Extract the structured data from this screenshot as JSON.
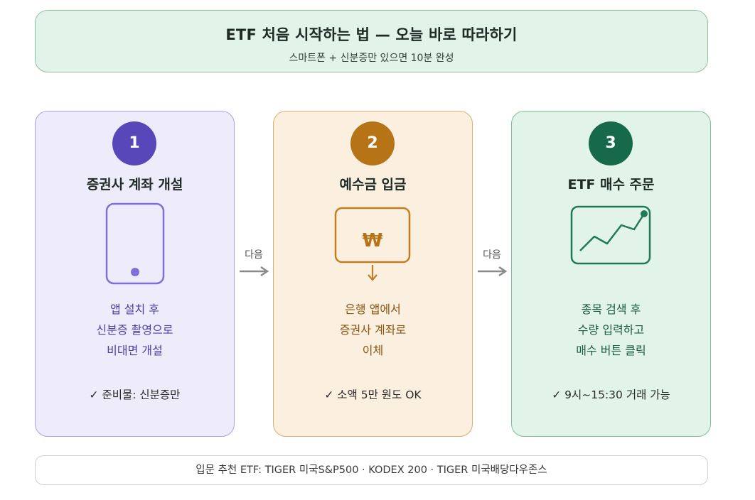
{
  "header": {
    "title": "ETF 처음 시작하는 법 — 오늘 바로 따라하기",
    "subtitle": "스마트폰 + 신분증만 있으면 10분 완성"
  },
  "steps": [
    {
      "number": "1",
      "title": "증권사 계좌 개설",
      "icon": "smartphone-icon",
      "description": [
        "앱 설치 후",
        "신분증 촬영으로",
        "비대면 개설"
      ],
      "note": "✓ 준비물: 신분증만",
      "accent": "#5747b8"
    },
    {
      "number": "2",
      "title": "예수금 입금",
      "icon": "won-deposit-icon",
      "icon_text": "₩",
      "description": [
        "은행 앱에서",
        "증권사 계좌로",
        "이체"
      ],
      "note": "✓ 소액 5만 원도 OK",
      "accent": "#b77417"
    },
    {
      "number": "3",
      "title": "ETF 매수 주문",
      "icon": "line-chart-icon",
      "description": [
        "종목 검색 후",
        "수량 입력하고",
        "매수 버튼 클릭"
      ],
      "note": "✓ 9시~15:30 거래 가능",
      "accent": "#16694a"
    }
  ],
  "connectors": [
    {
      "label": "다음"
    },
    {
      "label": "다음"
    }
  ],
  "footer": {
    "text": "입문 추천 ETF: TIGER 미국S&P500 · KODEX 200 · TIGER 미국배당다우존스"
  }
}
